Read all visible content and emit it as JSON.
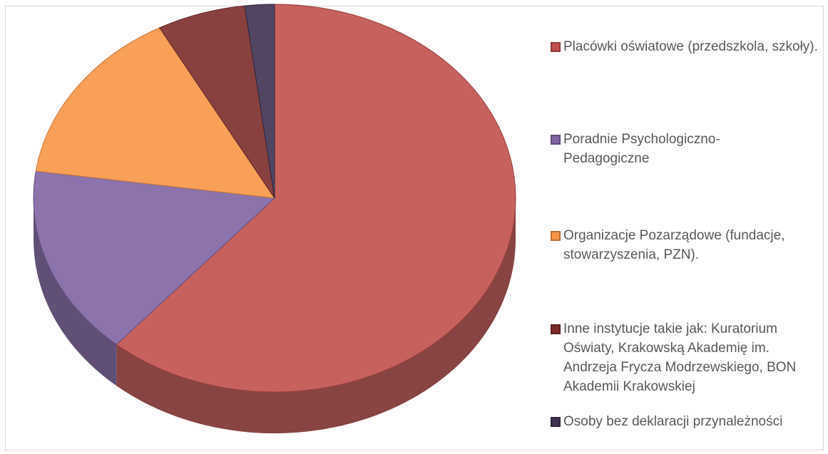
{
  "chart_data": {
    "type": "pie",
    "style": "3d-exploded",
    "legend_position": "right",
    "categories": [
      "Placówki oświatowe (przedszkola, szkoły).",
      "Poradnie Psychologiczno-Pedagogiczne",
      "Organizacje Pozarządowe (fundacje, stowarzyszenia, PZN).",
      "Inne instytucje takie jak: Kuratorium Oświaty, Krakowską Akademię im. Andrzeja Frycza Modrzewskiego, BON Akademii Krakowskiej",
      "Osoby bez deklaracji przynależności"
    ],
    "values": [
      62,
      16,
      15,
      6,
      2
    ],
    "colors": [
      "#c0504d",
      "#8064a2",
      "#f79646",
      "#7b2c2a",
      "#3f3151"
    ]
  }
}
